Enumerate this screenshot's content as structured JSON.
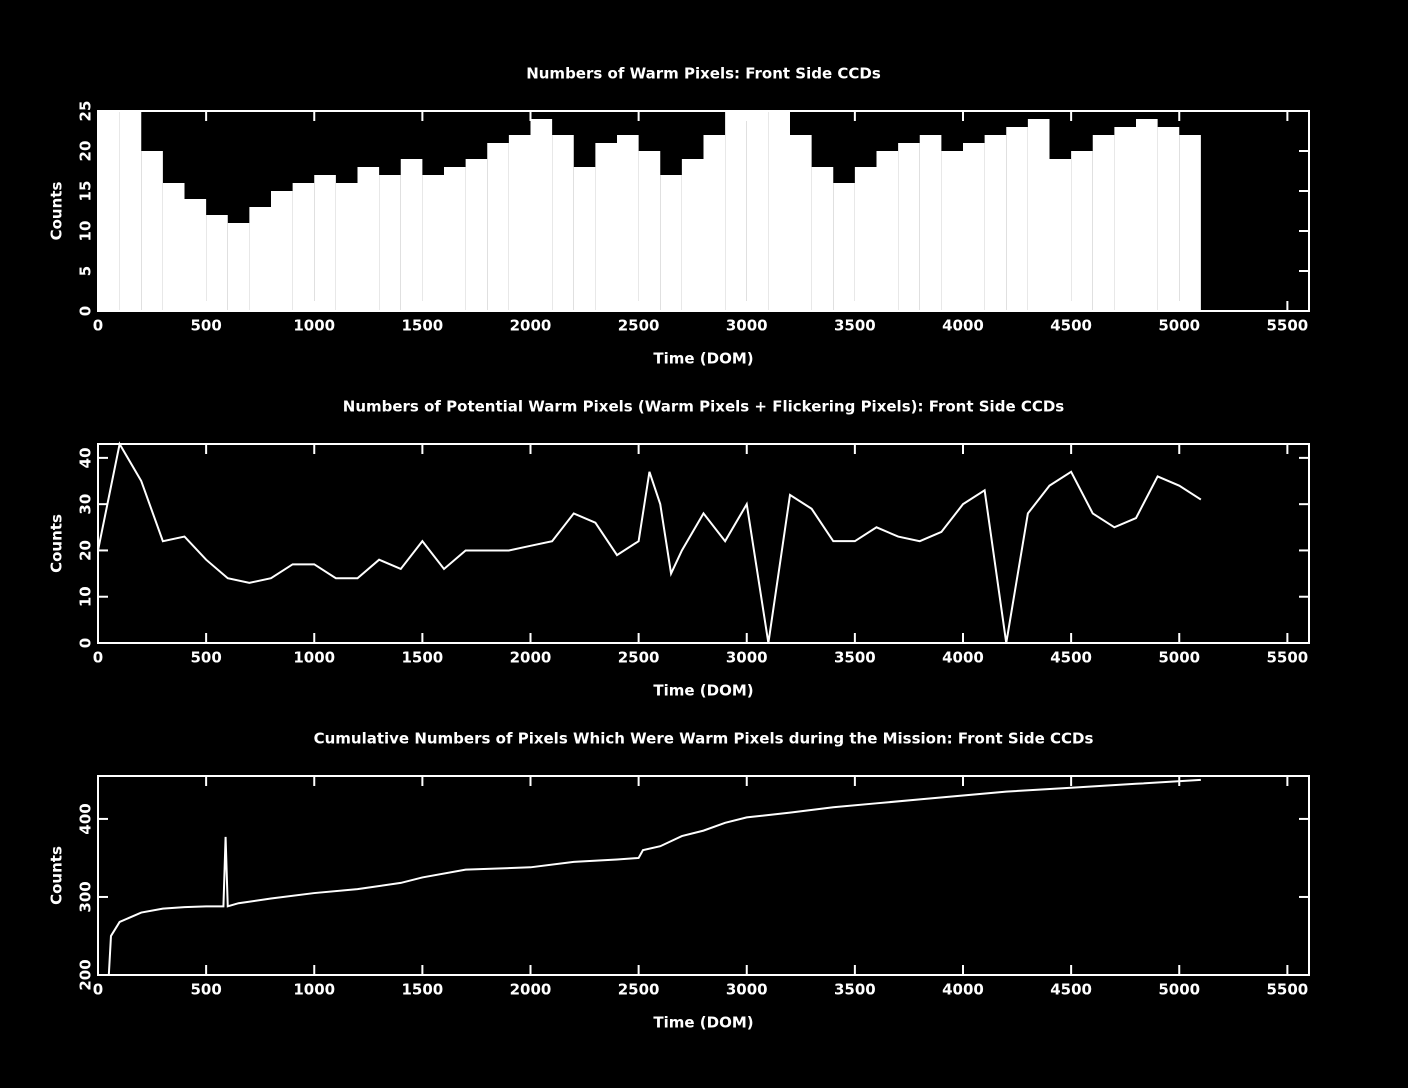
{
  "chart_data": [
    {
      "type": "bar",
      "title": "Numbers of Warm Pixels: Front Side CCDs",
      "x_label": "Time (DOM)",
      "y_label": "Counts",
      "color": "#ffffff",
      "x": [
        0,
        100,
        200,
        300,
        400,
        500,
        600,
        700,
        800,
        900,
        1000,
        1100,
        1200,
        1300,
        1400,
        1500,
        1600,
        1700,
        1800,
        1900,
        2000,
        2100,
        2200,
        2300,
        2400,
        2500,
        2600,
        2700,
        2800,
        2900,
        3000,
        3100,
        3200,
        3300,
        3400,
        3500,
        3600,
        3700,
        3800,
        3900,
        4000,
        4100,
        4200,
        4300,
        4400,
        4500,
        4600,
        4700,
        4800,
        4900,
        5000
      ],
      "values": [
        25,
        25,
        20,
        16,
        14,
        12,
        11,
        13,
        15,
        16,
        17,
        16,
        18,
        17,
        19,
        17,
        18,
        19,
        21,
        22,
        24,
        22,
        18,
        21,
        22,
        20,
        17,
        19,
        22,
        25,
        25,
        25,
        22,
        18,
        16,
        18,
        20,
        21,
        22,
        20,
        21,
        22,
        23,
        24,
        19,
        20,
        22,
        23,
        24,
        23,
        22
      ],
      "xlim": [
        0,
        5600
      ],
      "ylim": [
        0,
        25
      ],
      "xticks": [
        0,
        500,
        1000,
        1500,
        2000,
        2500,
        3000,
        3500,
        4000,
        4500,
        5000,
        5500
      ],
      "yticks": [
        0,
        5,
        10,
        15,
        20,
        25
      ]
    },
    {
      "type": "line",
      "title": "Numbers of Potential Warm Pixels (Warm Pixels + Flickering Pixels): Front Side CCDs",
      "x_label": "Time (DOM)",
      "y_label": "Counts",
      "color": "#ffffff",
      "x": [
        0,
        100,
        200,
        300,
        400,
        500,
        600,
        700,
        800,
        900,
        1000,
        1100,
        1200,
        1300,
        1400,
        1500,
        1600,
        1700,
        1800,
        1900,
        2000,
        2100,
        2200,
        2300,
        2400,
        2500,
        2550,
        2600,
        2650,
        2700,
        2800,
        2900,
        3000,
        3100,
        3200,
        3300,
        3400,
        3500,
        3600,
        3700,
        3800,
        3900,
        4000,
        4100,
        4200,
        4300,
        4400,
        4500,
        4600,
        4700,
        4800,
        4900,
        5000,
        5100
      ],
      "values": [
        20,
        43,
        35,
        22,
        23,
        18,
        14,
        13,
        14,
        17,
        17,
        14,
        14,
        18,
        16,
        22,
        16,
        20,
        20,
        20,
        21,
        22,
        28,
        26,
        19,
        22,
        37,
        30,
        15,
        20,
        28,
        22,
        30,
        0,
        32,
        29,
        22,
        22,
        25,
        23,
        22,
        24,
        30,
        33,
        0,
        28,
        34,
        37,
        28,
        25,
        27,
        36,
        34,
        31
      ],
      "xlim": [
        0,
        5600
      ],
      "ylim": [
        0,
        43
      ],
      "xticks": [
        0,
        500,
        1000,
        1500,
        2000,
        2500,
        3000,
        3500,
        4000,
        4500,
        5000,
        5500
      ],
      "yticks": [
        0,
        10,
        20,
        30,
        40
      ]
    },
    {
      "type": "line",
      "title": "Cumulative Numbers of Pixels Which Were Warm Pixels during the Mission: Front Side CCDs",
      "x_label": "Time (DOM)",
      "y_label": "Counts",
      "color": "#ffffff",
      "x": [
        50,
        60,
        100,
        200,
        300,
        400,
        500,
        580,
        590,
        600,
        650,
        800,
        1000,
        1200,
        1400,
        1500,
        1700,
        2000,
        2200,
        2400,
        2500,
        2520,
        2600,
        2700,
        2800,
        2900,
        3000,
        3200,
        3400,
        3600,
        3800,
        4000,
        4200,
        4500,
        4800,
        5100
      ],
      "values": [
        200,
        250,
        268,
        280,
        285,
        287,
        288,
        288,
        377,
        288,
        292,
        298,
        305,
        310,
        318,
        325,
        335,
        338,
        345,
        348,
        350,
        360,
        365,
        378,
        385,
        395,
        402,
        408,
        415,
        420,
        425,
        430,
        435,
        440,
        445,
        450
      ],
      "xlim": [
        0,
        5600
      ],
      "ylim": [
        200,
        455
      ],
      "xticks": [
        0,
        500,
        1000,
        1500,
        2000,
        2500,
        3000,
        3500,
        4000,
        4500,
        5000,
        5500
      ],
      "yticks": [
        200,
        300,
        400
      ]
    }
  ]
}
